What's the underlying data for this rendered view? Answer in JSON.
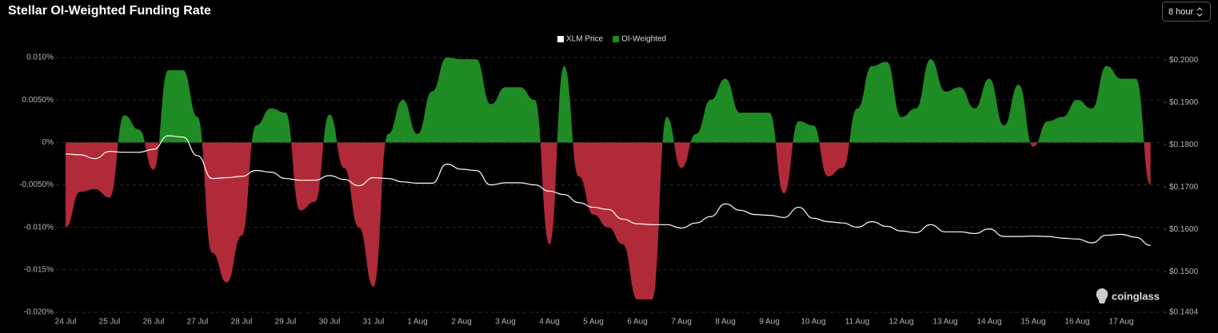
{
  "controls": {
    "interval": "8 hour"
  },
  "watermark": "coinglass",
  "chart_data": {
    "type": "area",
    "title": "Stellar OI-Weighted Funding Rate",
    "categories": [
      "24 Jul",
      null,
      null,
      "25 Jul",
      null,
      null,
      "26 Jul",
      null,
      null,
      "27 Jul",
      null,
      null,
      "28 Jul",
      null,
      null,
      "29 Jul",
      null,
      null,
      "30 Jul",
      null,
      null,
      "31 Jul",
      null,
      null,
      "1 Aug",
      null,
      null,
      "2 Aug",
      null,
      null,
      "3 Aug",
      null,
      null,
      "4 Aug",
      null,
      null,
      "5 Aug",
      null,
      null,
      "6 Aug",
      null,
      null,
      "7 Aug",
      null,
      null,
      "8 Aug",
      null,
      null,
      "9 Aug",
      null,
      null,
      "10 Aug",
      null,
      null,
      "11 Aug",
      null,
      null,
      "12 Aug",
      null,
      null,
      "13 Aug",
      null,
      null,
      "14 Aug",
      null,
      null,
      "15 Aug",
      null,
      null,
      "16 Aug",
      null,
      null,
      "17 Aug",
      null,
      null
    ],
    "series": [
      {
        "name": "XLM Price",
        "color": "#ffffff",
        "axis": "y2",
        "values": [
          0.1778,
          0.1776,
          0.1767,
          0.1784,
          0.1782,
          0.1782,
          0.1789,
          0.1821,
          0.1818,
          0.1774,
          0.172,
          0.1722,
          0.1725,
          0.1739,
          0.1735,
          0.172,
          0.1716,
          0.1716,
          0.1727,
          0.1718,
          0.1703,
          0.1722,
          0.172,
          0.1712,
          0.1709,
          0.1709,
          0.1754,
          0.1742,
          0.1739,
          0.1705,
          0.171,
          0.171,
          0.1705,
          0.169,
          0.1682,
          0.1663,
          0.1652,
          0.1647,
          0.1624,
          0.1613,
          0.1611,
          0.1611,
          0.1603,
          0.1615,
          0.163,
          0.166,
          0.1645,
          0.1635,
          0.1633,
          0.1628,
          0.1652,
          0.1626,
          0.1618,
          0.1615,
          0.1605,
          0.1618,
          0.1607,
          0.1596,
          0.1592,
          0.1611,
          0.1594,
          0.1594,
          0.159,
          0.1601,
          0.1583,
          0.1583,
          0.1584,
          0.1583,
          0.1579,
          0.1577,
          0.1568,
          0.1586,
          0.1588,
          0.1581,
          0.1562
        ]
      },
      {
        "name": "OI-Weighted",
        "color": "#1f8b24",
        "negative_color": "#b02a3a",
        "values": [
          -0.01,
          -0.0058,
          -0.0055,
          -0.0065,
          0.0032,
          0.0015,
          -0.0032,
          0.0085,
          0.0085,
          0.003,
          -0.013,
          -0.0165,
          -0.011,
          0.002,
          0.004,
          0.0035,
          -0.008,
          -0.007,
          0.0033,
          -0.003,
          -0.01,
          -0.017,
          0.001,
          0.005,
          0.001,
          0.006,
          0.01,
          0.0098,
          0.0098,
          0.0045,
          0.0065,
          0.0065,
          0.005,
          -0.012,
          0.009,
          -0.004,
          -0.0085,
          -0.01,
          -0.012,
          -0.0185,
          -0.0185,
          0.003,
          -0.003,
          0.001,
          0.005,
          0.0075,
          0.0035,
          0.0035,
          0.0035,
          -0.006,
          0.0025,
          0.002,
          -0.004,
          -0.003,
          0.004,
          0.009,
          0.0095,
          0.003,
          0.004,
          0.0098,
          0.006,
          0.0065,
          0.004,
          0.0075,
          0.002,
          0.0068,
          -0.0005,
          0.0025,
          0.003,
          0.005,
          0.004,
          0.009,
          0.0075,
          0.0075,
          -0.005
        ]
      }
    ],
    "ylim": [
      -0.02,
      0.01
    ],
    "yticks": [
      {
        "value": 0.01,
        "label": "0.010%"
      },
      {
        "value": 0.005,
        "label": "0.0050%"
      },
      {
        "value": 0,
        "label": "0%"
      },
      {
        "value": -0.005,
        "label": "-0.0050%"
      },
      {
        "value": -0.01,
        "label": "-0.010%"
      },
      {
        "value": -0.015,
        "label": "-0.015%"
      },
      {
        "value": -0.02,
        "label": "-0.020%"
      }
    ],
    "y2lim": [
      0.1404,
      0.2006
    ],
    "y2ticks": [
      {
        "value": 0.2,
        "label": "$0.2000"
      },
      {
        "value": 0.19,
        "label": "$0.1900"
      },
      {
        "value": 0.18,
        "label": "$0.1800"
      },
      {
        "value": 0.17,
        "label": "$0.1700"
      },
      {
        "value": 0.16,
        "label": "$0.1600"
      },
      {
        "value": 0.15,
        "label": "$0.1500"
      },
      {
        "value": 0.1404,
        "label": "$0.1404"
      }
    ],
    "grid": true,
    "legend": "top"
  }
}
